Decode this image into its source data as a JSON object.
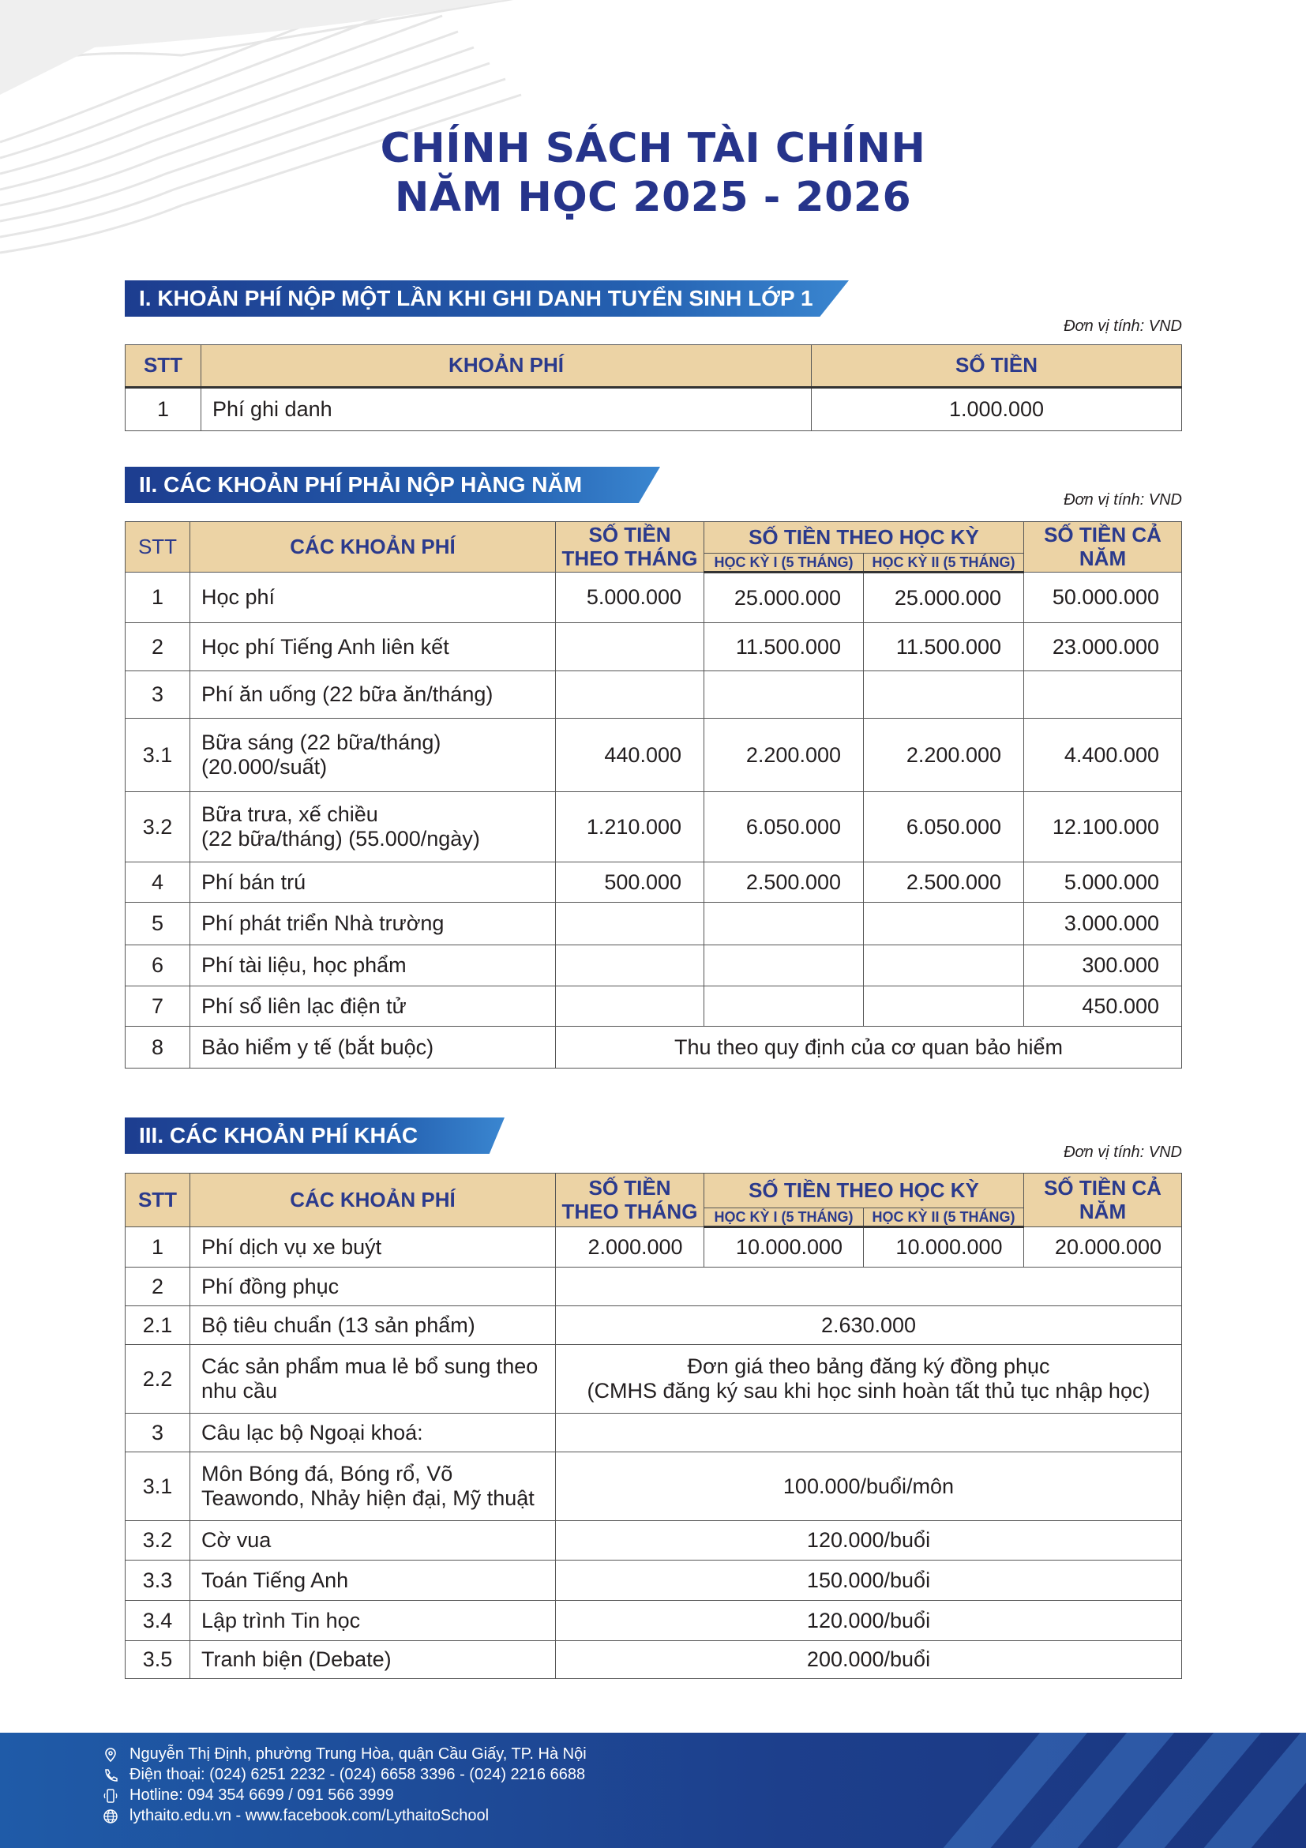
{
  "title": {
    "line1": "CHÍNH SÁCH TÀI CHÍNH",
    "line2": "NĂM HỌC 2025 - 2026"
  },
  "unit_label": "Đơn vị tính: VND",
  "colors": {
    "title": "#26348b",
    "header_bg": "#ecd3a5",
    "banner": "#1d3d8f"
  },
  "section1": {
    "heading": "I. KHOẢN PHÍ NỘP MỘT LẦN KHI GHI DANH TUYỂN SINH LỚP 1",
    "headers": {
      "stt": "STT",
      "fee": "KHOẢN PHÍ",
      "amount": "SỐ TIỀN"
    },
    "rows": [
      {
        "stt": "1",
        "fee": "Phí ghi danh",
        "amount": "1.000.000"
      }
    ]
  },
  "section2": {
    "heading": "II. CÁC KHOẢN PHÍ PHẢI NỘP HÀNG NĂM",
    "headers": {
      "stt": "STT",
      "fee": "CÁC KHOẢN PHÍ",
      "monthly": "SỐ TIỀN THEO THÁNG",
      "semester": "SỐ TIỀN THEO HỌC KỲ",
      "sem1": "HỌC KỲ I (5 THÁNG)",
      "sem2": "HỌC KỲ II (5 THÁNG)",
      "yearly": "SỐ TIỀN CẢ NĂM"
    },
    "rows": [
      {
        "stt": "1",
        "fee": "Học phí",
        "monthly": "5.000.000",
        "sem1": "25.000.000",
        "sem2": "25.000.000",
        "yearly": "50.000.000"
      },
      {
        "stt": "2",
        "fee": "Học phí Tiếng Anh liên kết",
        "monthly": "",
        "sem1": "11.500.000",
        "sem2": "11.500.000",
        "yearly": "23.000.000"
      },
      {
        "stt": "3",
        "fee": "Phí ăn uống (22 bữa ăn/tháng)",
        "monthly": "",
        "sem1": "",
        "sem2": "",
        "yearly": ""
      },
      {
        "stt": "3.1",
        "fee": "Bữa sáng (22 bữa/tháng)\n(20.000/suất)",
        "monthly": "440.000",
        "sem1": "2.200.000",
        "sem2": "2.200.000",
        "yearly": "4.400.000"
      },
      {
        "stt": "3.2",
        "fee": "Bữa trưa, xế chiều\n(22 bữa/tháng) (55.000/ngày)",
        "monthly": "1.210.000",
        "sem1": "6.050.000",
        "sem2": "6.050.000",
        "yearly": "12.100.000"
      },
      {
        "stt": "4",
        "fee": "Phí bán trú",
        "monthly": "500.000",
        "sem1": "2.500.000",
        "sem2": "2.500.000",
        "yearly": "5.000.000"
      },
      {
        "stt": "5",
        "fee": "Phí phát triển Nhà trường",
        "monthly": "",
        "sem1": "",
        "sem2": "",
        "yearly": "3.000.000"
      },
      {
        "stt": "6",
        "fee": "Phí tài liệu, học phẩm",
        "monthly": "",
        "sem1": "",
        "sem2": "",
        "yearly": "300.000"
      },
      {
        "stt": "7",
        "fee": "Phí sổ liên lạc điện tử",
        "monthly": "",
        "sem1": "",
        "sem2": "",
        "yearly": "450.000"
      },
      {
        "stt": "8",
        "fee": "Bảo hiểm y tế (bắt buộc)",
        "merged": "Thu theo quy định của cơ quan bảo hiểm"
      }
    ]
  },
  "section3": {
    "heading": "III. CÁC KHOẢN PHÍ KHÁC",
    "headers": {
      "stt": "STT",
      "fee": "CÁC KHOẢN PHÍ",
      "monthly": "SỐ TIỀN THEO THÁNG",
      "semester": "SỐ TIỀN THEO HỌC KỲ",
      "sem1": "HỌC KỲ I (5 THÁNG)",
      "sem2": "HỌC KỲ II (5 THÁNG)",
      "yearly": "SỐ TIỀN CẢ NĂM"
    },
    "rows": [
      {
        "stt": "1",
        "fee": "Phí dịch vụ xe buýt",
        "monthly": "2.000.000",
        "sem1": "10.000.000",
        "sem2": "10.000.000",
        "yearly": "20.000.000"
      },
      {
        "stt": "2",
        "fee": "Phí đồng phục",
        "merged": ""
      },
      {
        "stt": "2.1",
        "fee": "Bộ tiêu chuẩn (13 sản phẩm)",
        "merged": "2.630.000"
      },
      {
        "stt": "2.2",
        "fee": "Các sản phẩm mua lẻ bổ sung theo nhu cầu",
        "merged": "Đơn giá theo bảng đăng ký đồng phục\n(CMHS đăng ký sau khi học sinh hoàn tất thủ tục nhập học)"
      },
      {
        "stt": "3",
        "fee": "Câu lạc bộ Ngoại khoá:",
        "merged": ""
      },
      {
        "stt": "3.1",
        "fee": "Môn Bóng đá, Bóng rổ, Võ Teawondo, Nhảy hiện đại, Mỹ thuật",
        "merged": "100.000/buổi/môn"
      },
      {
        "stt": "3.2",
        "fee": "Cờ vua",
        "merged": "120.000/buổi"
      },
      {
        "stt": "3.3",
        "fee": "Toán Tiếng Anh",
        "merged": "150.000/buổi"
      },
      {
        "stt": "3.4",
        "fee": "Lập trình Tin học",
        "merged": "120.000/buổi"
      },
      {
        "stt": "3.5",
        "fee": "Tranh biện (Debate)",
        "merged": "200.000/buổi"
      }
    ]
  },
  "footer": {
    "address": "Nguyễn Thị Định, phường Trung Hòa, quận Cầu Giấy, TP. Hà Nội",
    "phone": "Điện thoại: (024) 6251 2232  -  (024) 6658 3396  -  (024) 2216 6688",
    "hotline": "Hotline: 094 354 6699 / 091 566 3999",
    "web": "lythaito.edu.vn   -  www.facebook.com/LythaitoSchool"
  }
}
